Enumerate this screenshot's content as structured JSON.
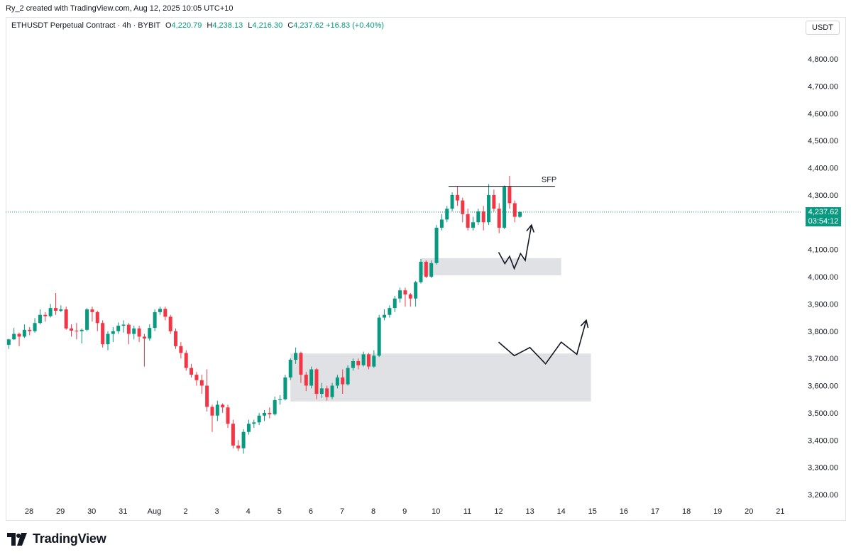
{
  "header": {
    "credit": "Ry_2 created with TradingView.com, Aug 12, 2025 10:05 UTC+10"
  },
  "legend": {
    "symbol": "ETHUSDT Perpetual Contract · 4h · BYBIT",
    "open_label": "O",
    "open": "4,220.79",
    "high_label": "H",
    "high": "4,238.13",
    "low_label": "L",
    "low": "4,216.30",
    "close_label": "C",
    "close": "4,237.62",
    "change": "+16.83 (+0.40%)"
  },
  "currency": "USDT",
  "price_badge": {
    "price": "4,237.62",
    "countdown": "03:54:12"
  },
  "brand": {
    "name": "TradingView"
  },
  "colors": {
    "up": "#089981",
    "down": "#f23645",
    "zone": "#e0e1e5",
    "last_line": "#089981"
  },
  "chart_data": {
    "type": "candlestick",
    "ylim": [
      3150,
      4900
    ],
    "y_ticks": [
      "4,800.00",
      "4,700.00",
      "4,600.00",
      "4,500.00",
      "4,400.00",
      "4,300.00",
      "4,100.00",
      "4,000.00",
      "3,900.00",
      "3,800.00",
      "3,700.00",
      "3,600.00",
      "3,500.00",
      "3,400.00",
      "3,300.00",
      "3,200.00"
    ],
    "y_tick_values": [
      4800,
      4700,
      4600,
      4500,
      4400,
      4300,
      4100,
      4000,
      3900,
      3800,
      3700,
      3600,
      3500,
      3400,
      3300,
      3200
    ],
    "x_ticks": [
      "28",
      "29",
      "30",
      "31",
      "Aug",
      "2",
      "3",
      "4",
      "5",
      "6",
      "7",
      "8",
      "9",
      "10",
      "11",
      "12",
      "13",
      "14",
      "15",
      "16",
      "17",
      "18",
      "19",
      "20",
      "21"
    ],
    "x_tick_days": [
      0,
      1,
      2,
      3,
      4,
      5,
      6,
      7,
      8,
      9,
      10,
      11,
      12,
      13,
      14,
      15,
      16,
      17,
      18,
      19,
      20,
      21,
      22,
      23,
      24
    ],
    "last_price": 4237.62,
    "annotations": [
      {
        "text": "SFP",
        "type": "horizontal_line",
        "price": 4332,
        "from_day": 13.4,
        "to_day": 16.8
      }
    ],
    "zones": [
      {
        "from_day": 12.5,
        "to_day": 17.0,
        "top": 4068,
        "bottom": 4005
      },
      {
        "from_day": 8.35,
        "to_day": 17.95,
        "top": 3718,
        "bottom": 3542
      }
    ],
    "projections": [
      {
        "points": [
          [
            15.0,
            4090
          ],
          [
            15.2,
            4048
          ],
          [
            15.35,
            4075
          ],
          [
            15.5,
            4030
          ],
          [
            15.7,
            4085
          ],
          [
            15.85,
            4060
          ],
          [
            16.05,
            4190
          ]
        ]
      },
      {
        "points": [
          [
            15.0,
            3760
          ],
          [
            15.5,
            3710
          ],
          [
            16.0,
            3740
          ],
          [
            16.5,
            3680
          ],
          [
            17.0,
            3760
          ],
          [
            17.5,
            3715
          ],
          [
            17.8,
            3840
          ]
        ]
      }
    ],
    "candles": [
      [
        3750,
        3770,
        3735,
        3772
      ],
      [
        3770,
        3790,
        3768,
        3812
      ],
      [
        3790,
        3780,
        3745,
        3795
      ],
      [
        3780,
        3805,
        3775,
        3825
      ],
      [
        3805,
        3800,
        3785,
        3815
      ],
      [
        3800,
        3830,
        3795,
        3848
      ],
      [
        3830,
        3860,
        3825,
        3880
      ],
      [
        3860,
        3855,
        3835,
        3870
      ],
      [
        3855,
        3885,
        3850,
        3900
      ],
      [
        3885,
        3875,
        3860,
        3940
      ],
      [
        3875,
        3880,
        3870,
        3895
      ],
      [
        3880,
        3810,
        3805,
        3890
      ],
      [
        3810,
        3802,
        3780,
        3825
      ],
      [
        3802,
        3800,
        3770,
        3830
      ],
      [
        3800,
        3805,
        3755,
        3810
      ],
      [
        3805,
        3880,
        3800,
        3885
      ],
      [
        3880,
        3870,
        3835,
        3890
      ],
      [
        3870,
        3830,
        3800,
        3875
      ],
      [
        3830,
        3752,
        3740,
        3840
      ],
      [
        3752,
        3790,
        3730,
        3800
      ],
      [
        3790,
        3800,
        3760,
        3815
      ],
      [
        3800,
        3820,
        3790,
        3832
      ],
      [
        3820,
        3824,
        3795,
        3840
      ],
      [
        3824,
        3790,
        3752,
        3830
      ],
      [
        3790,
        3810,
        3770,
        3820
      ],
      [
        3810,
        3780,
        3760,
        3820
      ],
      [
        3780,
        3773,
        3670,
        3790
      ],
      [
        3773,
        3812,
        3765,
        3825
      ],
      [
        3812,
        3870,
        3800,
        3880
      ],
      [
        3870,
        3882,
        3860,
        3890
      ],
      [
        3882,
        3853,
        3840,
        3890
      ],
      [
        3853,
        3800,
        3790,
        3860
      ],
      [
        3800,
        3745,
        3735,
        3810
      ],
      [
        3745,
        3720,
        3700,
        3760
      ],
      [
        3720,
        3665,
        3655,
        3730
      ],
      [
        3665,
        3640,
        3630,
        3680
      ],
      [
        3640,
        3620,
        3600,
        3650
      ],
      [
        3620,
        3600,
        3570,
        3640
      ],
      [
        3600,
        3522,
        3505,
        3660
      ],
      [
        3522,
        3490,
        3430,
        3530
      ],
      [
        3490,
        3530,
        3470,
        3545
      ],
      [
        3530,
        3520,
        3500,
        3535
      ],
      [
        3520,
        3460,
        3445,
        3530
      ],
      [
        3460,
        3380,
        3370,
        3475
      ],
      [
        3380,
        3370,
        3360,
        3400
      ],
      [
        3370,
        3430,
        3350,
        3440
      ],
      [
        3430,
        3460,
        3420,
        3475
      ],
      [
        3460,
        3465,
        3445,
        3475
      ],
      [
        3465,
        3490,
        3455,
        3500
      ],
      [
        3490,
        3500,
        3470,
        3510
      ],
      [
        3500,
        3495,
        3480,
        3520
      ],
      [
        3495,
        3547,
        3490,
        3560
      ],
      [
        3547,
        3550,
        3530,
        3565
      ],
      [
        3550,
        3630,
        3545,
        3640
      ],
      [
        3630,
        3695,
        3620,
        3700
      ],
      [
        3695,
        3720,
        3680,
        3740
      ],
      [
        3720,
        3640,
        3610,
        3725
      ],
      [
        3640,
        3600,
        3580,
        3650
      ],
      [
        3600,
        3660,
        3590,
        3670
      ],
      [
        3660,
        3570,
        3550,
        3665
      ],
      [
        3570,
        3590,
        3555,
        3610
      ],
      [
        3590,
        3558,
        3545,
        3600
      ],
      [
        3558,
        3600,
        3550,
        3610
      ],
      [
        3600,
        3630,
        3590,
        3640
      ],
      [
        3630,
        3605,
        3570,
        3660
      ],
      [
        3605,
        3665,
        3600,
        3675
      ],
      [
        3665,
        3690,
        3655,
        3700
      ],
      [
        3690,
        3675,
        3660,
        3700
      ],
      [
        3675,
        3715,
        3670,
        3725
      ],
      [
        3715,
        3670,
        3660,
        3720
      ],
      [
        3670,
        3710,
        3665,
        3730
      ],
      [
        3710,
        3850,
        3705,
        3860
      ],
      [
        3850,
        3860,
        3840,
        3880
      ],
      [
        3860,
        3885,
        3850,
        3895
      ],
      [
        3885,
        3920,
        3870,
        3930
      ],
      [
        3920,
        3950,
        3905,
        3960
      ],
      [
        3950,
        3935,
        3890,
        3960
      ],
      [
        3935,
        3920,
        3890,
        3940
      ],
      [
        3920,
        3980,
        3890,
        3985
      ],
      [
        3980,
        4055,
        3975,
        4065
      ],
      [
        4055,
        4000,
        3995,
        4060
      ],
      [
        4000,
        4050,
        3995,
        4060
      ],
      [
        4050,
        4180,
        4045,
        4190
      ],
      [
        4180,
        4210,
        4170,
        4230
      ],
      [
        4210,
        4250,
        4200,
        4260
      ],
      [
        4250,
        4300,
        4240,
        4310
      ],
      [
        4300,
        4280,
        4260,
        4330
      ],
      [
        4280,
        4230,
        4200,
        4290
      ],
      [
        4230,
        4180,
        4170,
        4250
      ],
      [
        4180,
        4200,
        4170,
        4220
      ],
      [
        4200,
        4240,
        4190,
        4250
      ],
      [
        4240,
        4200,
        4170,
        4260
      ],
      [
        4200,
        4300,
        4190,
        4340
      ],
      [
        4300,
        4250,
        4240,
        4320
      ],
      [
        4250,
        4180,
        4160,
        4270
      ],
      [
        4180,
        4330,
        4175,
        4335
      ],
      [
        4330,
        4270,
        4250,
        4370
      ],
      [
        4270,
        4220,
        4200,
        4280
      ],
      [
        4220,
        4238,
        4216,
        4240
      ]
    ]
  }
}
